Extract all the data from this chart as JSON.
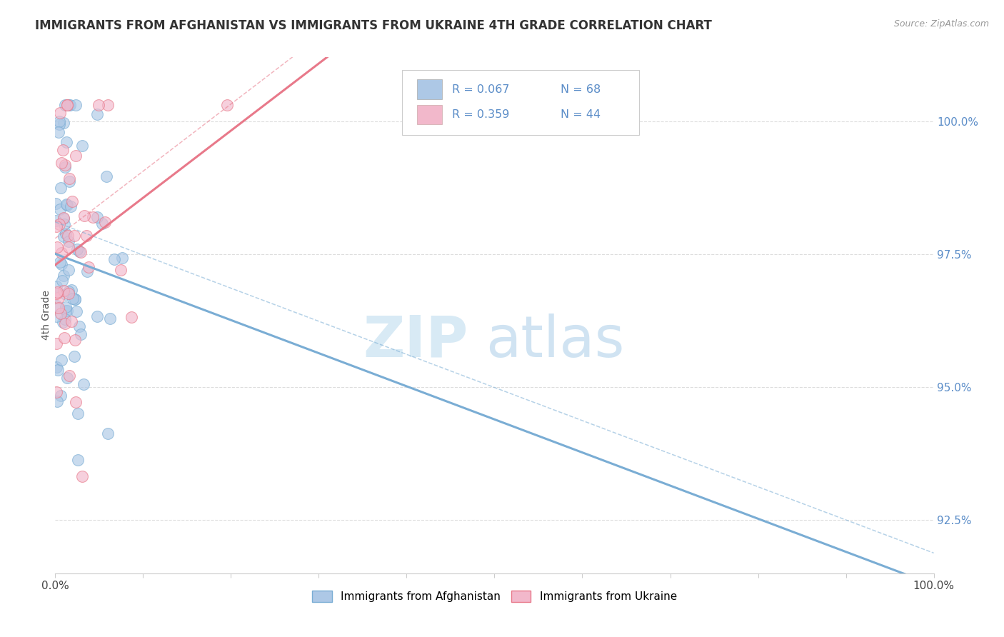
{
  "title": "IMMIGRANTS FROM AFGHANISTAN VS IMMIGRANTS FROM UKRAINE 4TH GRADE CORRELATION CHART",
  "source": "Source: ZipAtlas.com",
  "xlabel_bottom": "Immigrants from Afghanistan",
  "xlabel_right_label": "Immigrants from Ukraine",
  "ylabel": "4th Grade",
  "xlim": [
    0.0,
    100.0
  ],
  "ylim": [
    91.5,
    101.2
  ],
  "yticks": [
    92.5,
    95.0,
    97.5,
    100.0
  ],
  "ytick_labels": [
    "92.5%",
    "95.0%",
    "97.5%",
    "100.0%"
  ],
  "r_afghanistan": 0.067,
  "n_afghanistan": 68,
  "r_ukraine": 0.359,
  "n_ukraine": 44,
  "color_afghanistan": "#adc8e6",
  "color_ukraine": "#f2b8cb",
  "color_line_afghanistan": "#7aadd4",
  "color_line_ukraine": "#e8798a",
  "color_text_blue": "#5b8dc8",
  "color_watermark": "#d8eaf5",
  "watermark_zip": "ZIP",
  "watermark_atlas": "atlas",
  "background": "#ffffff",
  "grid_color": "#dddddd",
  "spine_color": "#cccccc"
}
